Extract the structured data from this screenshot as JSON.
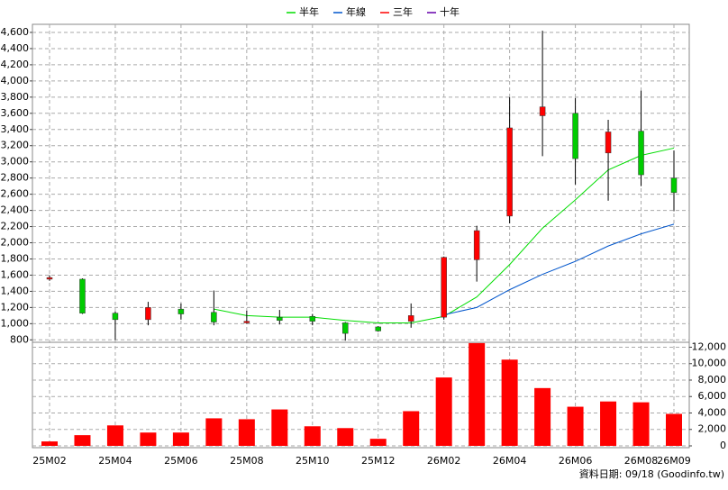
{
  "chart_data": {
    "type": "candlestick",
    "categories": [
      "25M02",
      null,
      "25M04",
      null,
      "25M06",
      null,
      "25M08",
      null,
      "25M10",
      null,
      "25M12",
      null,
      "26M02",
      null,
      "26M04",
      null,
      "26M06",
      null,
      "26M08",
      "26M09"
    ],
    "open": [
      1550,
      1550,
      1130,
      1050,
      1180,
      1140,
      1010,
      1080,
      1090,
      1010,
      960,
      1030,
      1080,
      1790,
      2330,
      3570,
      3600,
      3110,
      3380,
      2800
    ],
    "high": [
      1600,
      1560,
      1150,
      1270,
      1250,
      1410,
      1160,
      1170,
      1120,
      1020,
      970,
      1250,
      1830,
      2210,
      3800,
      4620,
      3790,
      3520,
      3880,
      3140
    ],
    "low": [
      1530,
      1120,
      800,
      980,
      1050,
      980,
      1000,
      990,
      980,
      790,
      900,
      950,
      1050,
      1520,
      2240,
      3070,
      2720,
      2520,
      2700,
      2390
    ],
    "close": [
      1570,
      1130,
      1050,
      1200,
      1120,
      1020,
      1030,
      1040,
      1030,
      880,
      910,
      1100,
      1820,
      2150,
      3420,
      3680,
      3040,
      3370,
      2840,
      2620
    ],
    "up_color": "#ff0000",
    "down_color": "#00cc00",
    "series": [
      {
        "name": "半年",
        "color": "#00dd00",
        "values": [
          null,
          null,
          null,
          null,
          null,
          1180,
          1100,
          1080,
          1080,
          1040,
          1010,
          1010,
          1090,
          1330,
          1730,
          2180,
          2530,
          2900,
          3080,
          3170
        ]
      },
      {
        "name": "年線",
        "color": "#0055cc",
        "values": [
          null,
          null,
          null,
          null,
          null,
          null,
          null,
          null,
          null,
          null,
          null,
          null,
          1110,
          1200,
          1420,
          1610,
          1770,
          1960,
          2110,
          2230
        ]
      },
      {
        "name": "三年",
        "color": "#ff0000",
        "values": [
          null,
          null,
          null,
          null,
          null,
          null,
          null,
          null,
          null,
          null,
          null,
          null,
          null,
          null,
          null,
          null,
          null,
          null,
          null,
          null
        ]
      },
      {
        "name": "十年",
        "color": "#6600aa",
        "values": [
          null,
          null,
          null,
          null,
          null,
          null,
          null,
          null,
          null,
          null,
          null,
          null,
          null,
          null,
          null,
          null,
          null,
          null,
          null,
          null
        ]
      }
    ],
    "ylim": [
      770,
      4700
    ],
    "yticks": [
      800,
      {
        "value": 1000,
        "label": "1,000"
      },
      {
        "value": 1200,
        "label": "1,200"
      },
      {
        "value": 1400,
        "label": "1,400"
      },
      {
        "value": 1600,
        "label": "1,600"
      },
      {
        "value": 1800,
        "label": "1,800"
      },
      {
        "value": 2000,
        "label": "2,000"
      },
      {
        "value": 2200,
        "label": "2,200"
      },
      {
        "value": 2400,
        "label": "2,400"
      },
      {
        "value": 2600,
        "label": "2,600"
      },
      {
        "value": 2800,
        "label": "2,800"
      },
      {
        "value": 3000,
        "label": "3,000"
      },
      {
        "value": 3200,
        "label": "3,200"
      },
      {
        "value": 3400,
        "label": "3,400"
      },
      {
        "value": 3600,
        "label": "3,600"
      },
      {
        "value": 3800,
        "label": "3,800"
      },
      {
        "value": 4000,
        "label": "4,000"
      },
      {
        "value": 4200,
        "label": "4,200"
      },
      {
        "value": 4400,
        "label": "4,400"
      },
      {
        "value": 4600,
        "label": "4,600"
      }
    ],
    "volume": {
      "color": "#ff0000",
      "values": [
        540,
        1300,
        2490,
        1620,
        1620,
        3350,
        3240,
        4430,
        2380,
        2160,
        860,
        4220,
        8320,
        12500,
        10490,
        7030,
        4760,
        5400,
        5300,
        3890
      ]
    },
    "y2lim": [
      0,
      12600
    ],
    "y2ticks": [
      0,
      {
        "value": 2000,
        "label": "2,000"
      },
      {
        "value": 4000,
        "label": "4,000"
      },
      {
        "value": 6000,
        "label": "6,000"
      },
      {
        "value": 8000,
        "label": "8,000"
      },
      {
        "value": 10000,
        "label": "10,000"
      },
      {
        "value": 12000,
        "label": "12,000"
      }
    ],
    "grid": true,
    "legend": "top",
    "footnote": "資料日期: 09/18  (Goodinfo.tw)"
  }
}
